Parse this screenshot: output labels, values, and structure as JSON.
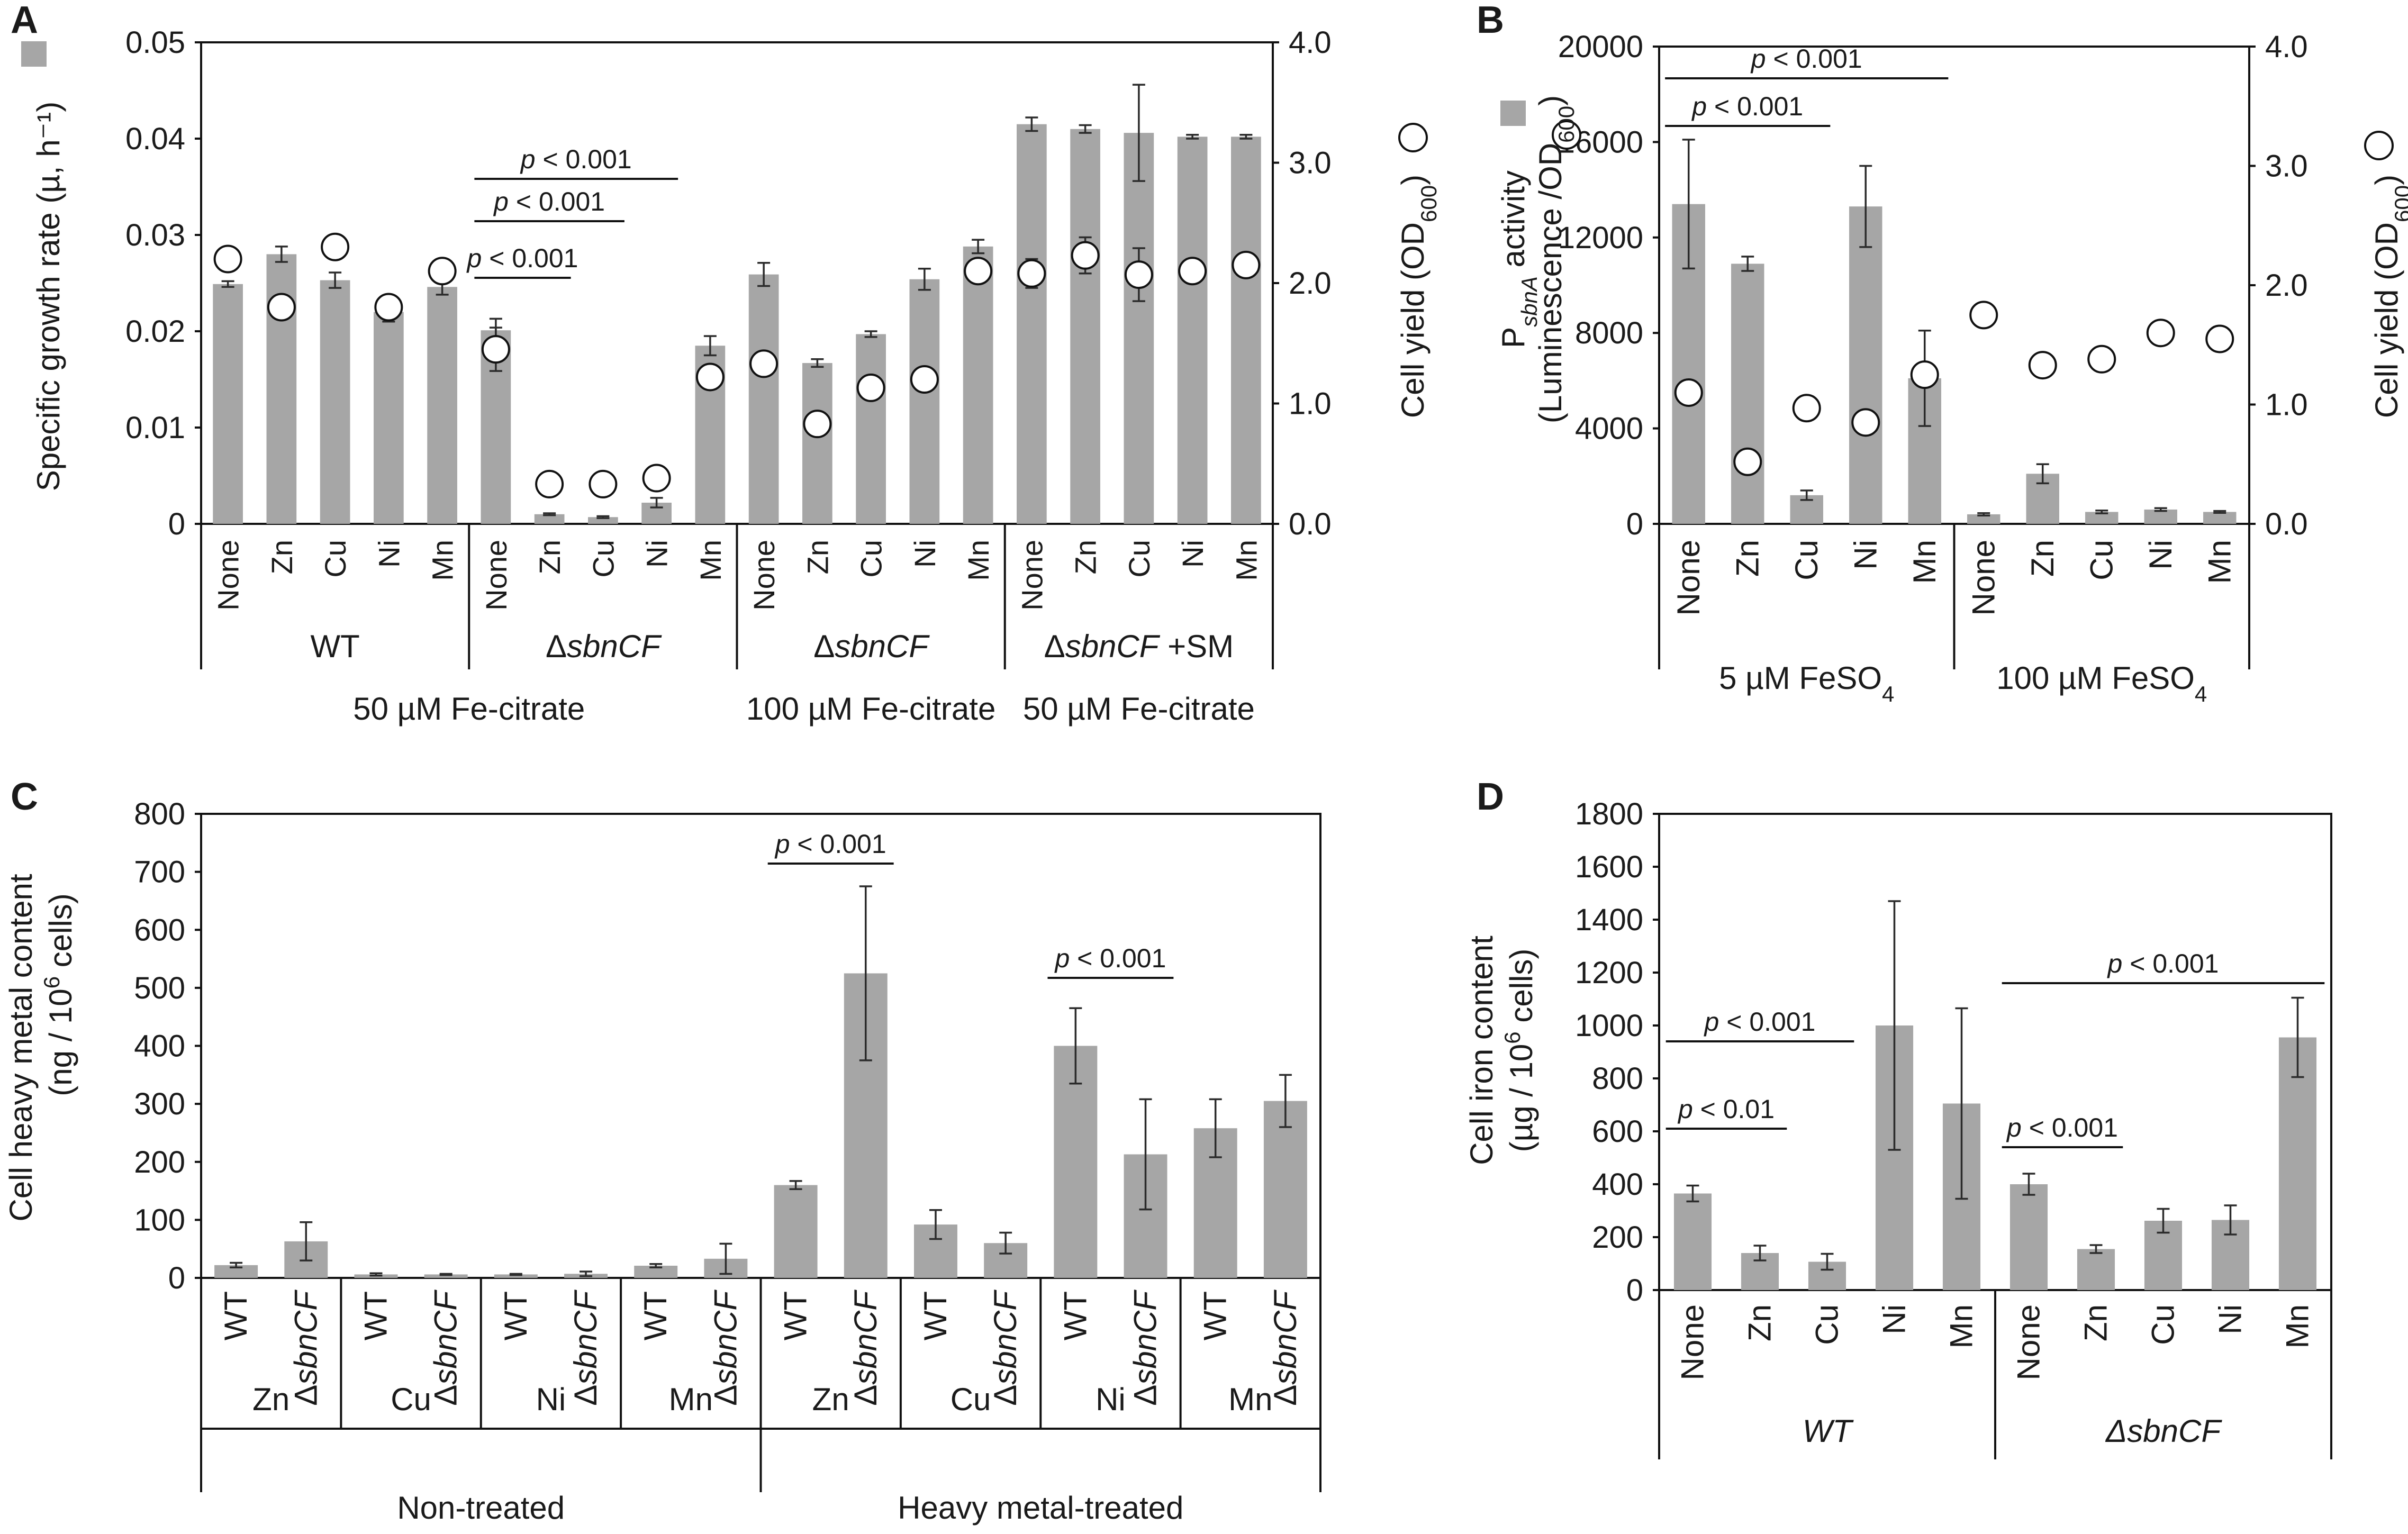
{
  "chart_data": [
    {
      "panel": "A",
      "type": "bar",
      "ylabel": "Specific growth rate  (µ, h⁻¹)",
      "y2label_pre": "Cell yield (OD",
      "y2label_sub": "600",
      "y2label_post": ")",
      "ylim": [
        0,
        0.05
      ],
      "yticks": [
        "0",
        "0.01",
        "0.02",
        "0.03",
        "0.04",
        "0.05"
      ],
      "y2lim": [
        0,
        4.0
      ],
      "y2ticks": [
        "0.0",
        "1.0",
        "2.0",
        "3.0",
        "4.0"
      ],
      "categories": [
        "None",
        "Zn",
        "Cu",
        "Ni",
        "Mn",
        "None",
        "Zn",
        "Cu",
        "Ni",
        "Mn",
        "None",
        "Zn",
        "Cu",
        "Ni",
        "Mn",
        "None",
        "Zn",
        "Cu",
        "Ni",
        "Mn"
      ],
      "series": [
        {
          "name": "Specific growth rate",
          "values": [
            0.0249,
            0.028,
            0.0253,
            0.022,
            0.0246,
            0.0201,
            0.001,
            0.0007,
            0.0022,
            0.0185,
            0.0259,
            0.0167,
            0.0197,
            0.0254,
            0.0288,
            0.0415,
            0.041,
            0.0406,
            0.0402,
            0.0402
          ],
          "errors": [
            0.0003,
            0.0008,
            0.0008,
            0.001,
            0.0008,
            0.0012,
            0.0001,
            0.0001,
            0.0005,
            0.001,
            0.0012,
            0.0004,
            0.0003,
            0.0011,
            0.0007,
            0.0007,
            0.0004,
            0.005,
            0.0002,
            0.0002
          ]
        },
        {
          "name": "Cell yield",
          "axis": "right",
          "values": [
            2.2,
            1.8,
            2.3,
            1.8,
            2.1,
            1.45,
            0.33,
            0.33,
            0.38,
            1.22,
            1.33,
            0.83,
            1.13,
            1.2,
            2.1,
            2.08,
            2.23,
            2.07,
            2.1,
            2.15
          ],
          "errors": [
            0,
            0,
            0,
            0,
            0,
            0.18,
            0,
            0,
            0,
            0.1,
            0.05,
            0,
            0,
            0.05,
            0.05,
            0.12,
            0.15,
            0.22,
            0.1,
            0.05
          ]
        }
      ],
      "groups": [
        {
          "label_pre": "WT",
          "label_italic": "",
          "label_post": ""
        },
        {
          "label_pre": "Δ",
          "label_italic": "sbnCF",
          "label_post": ""
        },
        {
          "label_pre": "Δ",
          "label_italic": "sbnCF",
          "label_post": ""
        },
        {
          "label_pre": "Δ",
          "label_italic": "sbnCF",
          "label_post": " +SM"
        }
      ],
      "conditions": [
        "50 µM Fe-citrate",
        "100 µM Fe-citrate",
        "50 µM Fe-citrate"
      ],
      "annotations": [
        {
          "pre": "p",
          "post": " < 0.001"
        },
        {
          "pre": "p",
          "post": " < 0.001"
        },
        {
          "pre": "p",
          "post": " < 0.001"
        }
      ]
    },
    {
      "panel": "B",
      "type": "bar",
      "ylabel_line1_pre": "P",
      "ylabel_line1_sub": "sbnA",
      "ylabel_line1_post": " activity",
      "ylabel_line2": "(Luminescence /OD",
      "ylabel_line2_sub": "600",
      "ylabel_line2_post": ")",
      "y2label_pre": "Cell yield (OD",
      "y2label_sub": "600",
      "y2label_post": ")",
      "ylim": [
        0,
        20000
      ],
      "yticks": [
        "0",
        "4000",
        "8000",
        "12000",
        "16000",
        "20000"
      ],
      "y2lim": [
        0,
        4.0
      ],
      "y2ticks": [
        "0.0",
        "1.0",
        "2.0",
        "3.0",
        "4.0"
      ],
      "categories": [
        "None",
        "Zn",
        "Cu",
        "Ni",
        "Mn",
        "None",
        "Zn",
        "Cu",
        "Ni",
        "Mn"
      ],
      "series": [
        {
          "name": "PsbnA activity",
          "values": [
            13400,
            10900,
            1200,
            13300,
            6100,
            400,
            2100,
            500,
            600,
            500
          ],
          "errors": [
            2700,
            300,
            200,
            1700,
            2000,
            50,
            400,
            60,
            60,
            40
          ]
        },
        {
          "name": "Cell yield",
          "axis": "right",
          "values": [
            1.1,
            0.52,
            0.97,
            0.85,
            1.25,
            1.75,
            1.33,
            1.38,
            1.6,
            1.55
          ],
          "errors": [
            0,
            0,
            0,
            0,
            0,
            0,
            0,
            0,
            0,
            0
          ]
        }
      ],
      "groups": [
        {
          "pre": "5 µM FeSO",
          "sub": "4"
        },
        {
          "pre": "100 µM FeSO",
          "sub": "4"
        }
      ],
      "annotations": [
        {
          "pre": "p",
          "post": " < 0.001"
        },
        {
          "pre": "p",
          "post": " < 0.001"
        }
      ]
    },
    {
      "panel": "C",
      "type": "bar",
      "ylabel_line1": "Cell heavy metal content",
      "ylabel_line2_pre": "(ng / 10",
      "ylabel_line2_sup": "6",
      "ylabel_line2_post": " cells)",
      "ylim": [
        0,
        800
      ],
      "yticks": [
        "0",
        "100",
        "200",
        "300",
        "400",
        "500",
        "600",
        "700",
        "800"
      ],
      "categories": [
        {
          "pre": "WT",
          "italic": ""
        },
        {
          "pre": "Δ",
          "italic": "sbnCF"
        },
        {
          "pre": "WT",
          "italic": ""
        },
        {
          "pre": "Δ",
          "italic": "sbnCF"
        },
        {
          "pre": "WT",
          "italic": ""
        },
        {
          "pre": "Δ",
          "italic": "sbnCF"
        },
        {
          "pre": "WT",
          "italic": ""
        },
        {
          "pre": "Δ",
          "italic": "sbnCF"
        },
        {
          "pre": "WT",
          "italic": ""
        },
        {
          "pre": "Δ",
          "italic": "sbnCF"
        },
        {
          "pre": "WT",
          "italic": ""
        },
        {
          "pre": "Δ",
          "italic": "sbnCF"
        },
        {
          "pre": "WT",
          "italic": ""
        },
        {
          "pre": "Δ",
          "italic": "sbnCF"
        },
        {
          "pre": "WT",
          "italic": ""
        },
        {
          "pre": "Δ",
          "italic": "sbnCF"
        }
      ],
      "series": [
        {
          "name": "Cell heavy metal content",
          "values": [
            22,
            63,
            6,
            6,
            6,
            7,
            21,
            33,
            160,
            525,
            92,
            60,
            400,
            213,
            258,
            305
          ],
          "errors": [
            4,
            33,
            2,
            1,
            1,
            4,
            3,
            26,
            7,
            150,
            25,
            18,
            65,
            95,
            50,
            45
          ]
        }
      ],
      "metals": [
        "Zn",
        "Cu",
        "Ni",
        "Mn",
        "Zn",
        "Cu",
        "Ni",
        "Mn"
      ],
      "treatments": [
        "Non-treated",
        "Heavy metal-treated"
      ],
      "annotations": [
        {
          "pre": "p",
          "post": " < 0.001"
        },
        {
          "pre": "p",
          "post": " < 0.001"
        }
      ]
    },
    {
      "panel": "D",
      "type": "bar",
      "ylabel_line1": "Cell iron content",
      "ylabel_line2_pre": "(µg / 10",
      "ylabel_line2_sup": "6",
      "ylabel_line2_post": " cells)",
      "ylim": [
        0,
        1800
      ],
      "yticks": [
        "0",
        "200",
        "400",
        "600",
        "800",
        "1000",
        "1200",
        "1400",
        "1600",
        "1800"
      ],
      "categories": [
        "None",
        "Zn",
        "Cu",
        "Ni",
        "Mn",
        "None",
        "Zn",
        "Cu",
        "Ni",
        "Mn"
      ],
      "series": [
        {
          "name": "Cell iron content",
          "values": [
            365,
            140,
            107,
            1000,
            705,
            400,
            155,
            262,
            265,
            955
          ],
          "errors": [
            30,
            28,
            30,
            470,
            360,
            40,
            15,
            45,
            55,
            150
          ]
        }
      ],
      "groups": [
        {
          "pre": "WT",
          "italic": ""
        },
        {
          "pre": "Δ",
          "italic": "sbnCF"
        }
      ],
      "annotations": [
        {
          "pre": "p",
          "post": " < 0.01"
        },
        {
          "pre": "p",
          "post": " < 0.001"
        },
        {
          "pre": "p",
          "post": " < 0.001"
        },
        {
          "pre": "p",
          "post": " < 0.001"
        }
      ]
    }
  ]
}
